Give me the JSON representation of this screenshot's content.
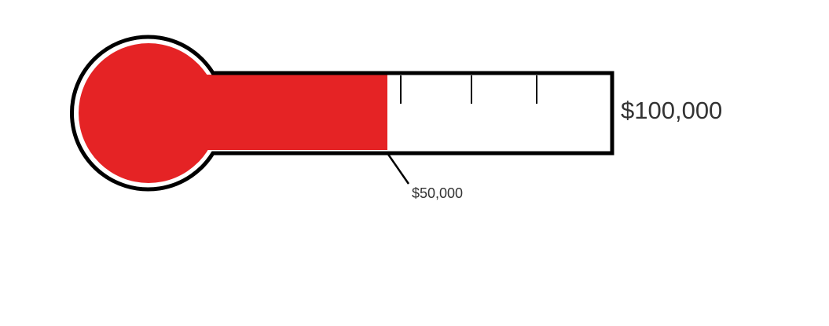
{
  "chart_data": {
    "type": "thermometer",
    "min": 0,
    "goal": 100000,
    "current": 50000,
    "goal_label": "$100,000",
    "current_label": "$50,000",
    "minor_ticks_between_current_and_goal": 3,
    "fill_color": "#e52325",
    "outline_color": "#000000",
    "text_color": "#333333"
  }
}
